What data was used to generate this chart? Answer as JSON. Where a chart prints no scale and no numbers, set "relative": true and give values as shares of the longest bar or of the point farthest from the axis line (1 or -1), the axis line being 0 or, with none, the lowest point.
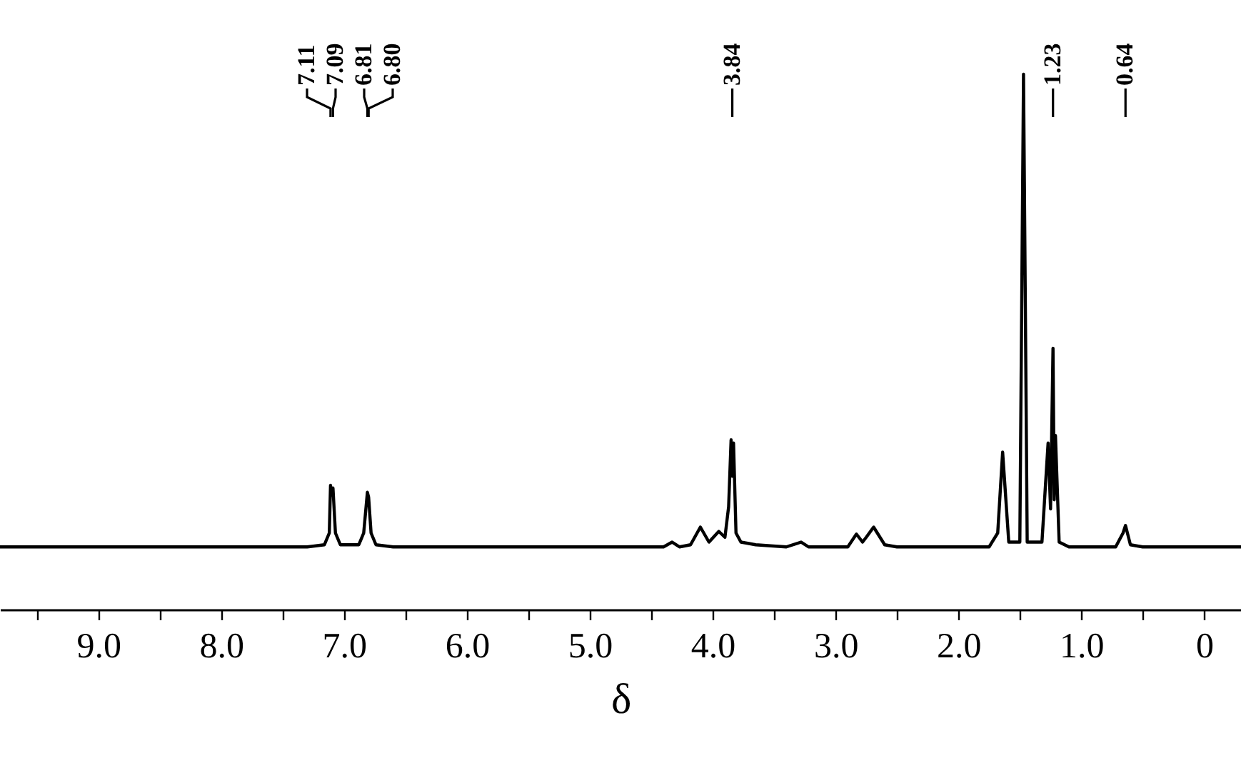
{
  "chart_data": {
    "type": "line",
    "xlabel": "δ",
    "relative": true,
    "xlim": [
      9.8,
      -0.3
    ],
    "xticks": [
      {
        "value": 9.5,
        "label": null
      },
      {
        "value": 9,
        "label": "9.0"
      },
      {
        "value": 8.5,
        "label": null
      },
      {
        "value": 8,
        "label": "8.0"
      },
      {
        "value": 7.5,
        "label": null
      },
      {
        "value": 7,
        "label": "7.0"
      },
      {
        "value": 6.5,
        "label": null
      },
      {
        "value": 6,
        "label": "6.0"
      },
      {
        "value": 5.5,
        "label": null
      },
      {
        "value": 5,
        "label": "5.0"
      },
      {
        "value": 4.5,
        "label": null
      },
      {
        "value": 4,
        "label": "4.0"
      },
      {
        "value": 3.5,
        "label": null
      },
      {
        "value": 3,
        "label": "3.0"
      },
      {
        "value": 2.5,
        "label": null
      },
      {
        "value": 2,
        "label": "2.0"
      },
      {
        "value": 1.5,
        "label": null
      },
      {
        "value": 1,
        "label": "1.0"
      },
      {
        "value": 0.5,
        "label": null
      },
      0
    ],
    "x": [
      9.8,
      7.3,
      7.16,
      7.12,
      7.11,
      7.1,
      7.09,
      7.07,
      7.03,
      6.88,
      6.84,
      6.81,
      6.8,
      6.78,
      6.74,
      6.6,
      4.4,
      4.33,
      4.27,
      4.18,
      4.1,
      4.03,
      3.95,
      3.9,
      3.87,
      3.85,
      3.84,
      3.83,
      3.81,
      3.77,
      3.65,
      3.4,
      3.28,
      3.22,
      2.9,
      2.83,
      2.78,
      2.75,
      2.69,
      2.6,
      2.5,
      1.75,
      1.68,
      1.64,
      1.59,
      1.5,
      1.47,
      1.44,
      1.32,
      1.27,
      1.25,
      1.23,
      1.22,
      1.21,
      1.18,
      1.1,
      0.72,
      0.66,
      0.64,
      0.6,
      0.5,
      -0.3
    ],
    "series": [
      {
        "color": "#000000",
        "line_style": "solid",
        "values": [
          0.117,
          0.117,
          0.121,
          0.143,
          0.232,
          0.214,
          0.227,
          0.143,
          0.121,
          0.121,
          0.143,
          0.219,
          0.21,
          0.143,
          0.121,
          0.117,
          0.117,
          0.126,
          0.117,
          0.121,
          0.154,
          0.126,
          0.146,
          0.135,
          0.192,
          0.317,
          0.249,
          0.311,
          0.143,
          0.126,
          0.121,
          0.117,
          0.126,
          0.117,
          0.117,
          0.141,
          0.126,
          0.135,
          0.154,
          0.121,
          0.117,
          0.117,
          0.143,
          0.294,
          0.126,
          0.126,
          1,
          0.126,
          0.126,
          0.311,
          0.188,
          0.488,
          0.205,
          0.325,
          0.126,
          0.117,
          0.117,
          0.143,
          0.157,
          0.121,
          0.117,
          0.117
        ]
      }
    ],
    "annotations": [
      {
        "text": "7.11",
        "x": 7.11
      },
      {
        "text": "7.09",
        "x": 7.09
      },
      {
        "text": "6.81",
        "x": 6.81
      },
      {
        "text": "6.80",
        "x": 6.8
      },
      {
        "text": "3.84",
        "x": 3.84
      },
      {
        "text": "1.23",
        "x": 1.23
      },
      {
        "text": "0.64",
        "x": 0.64
      }
    ]
  }
}
